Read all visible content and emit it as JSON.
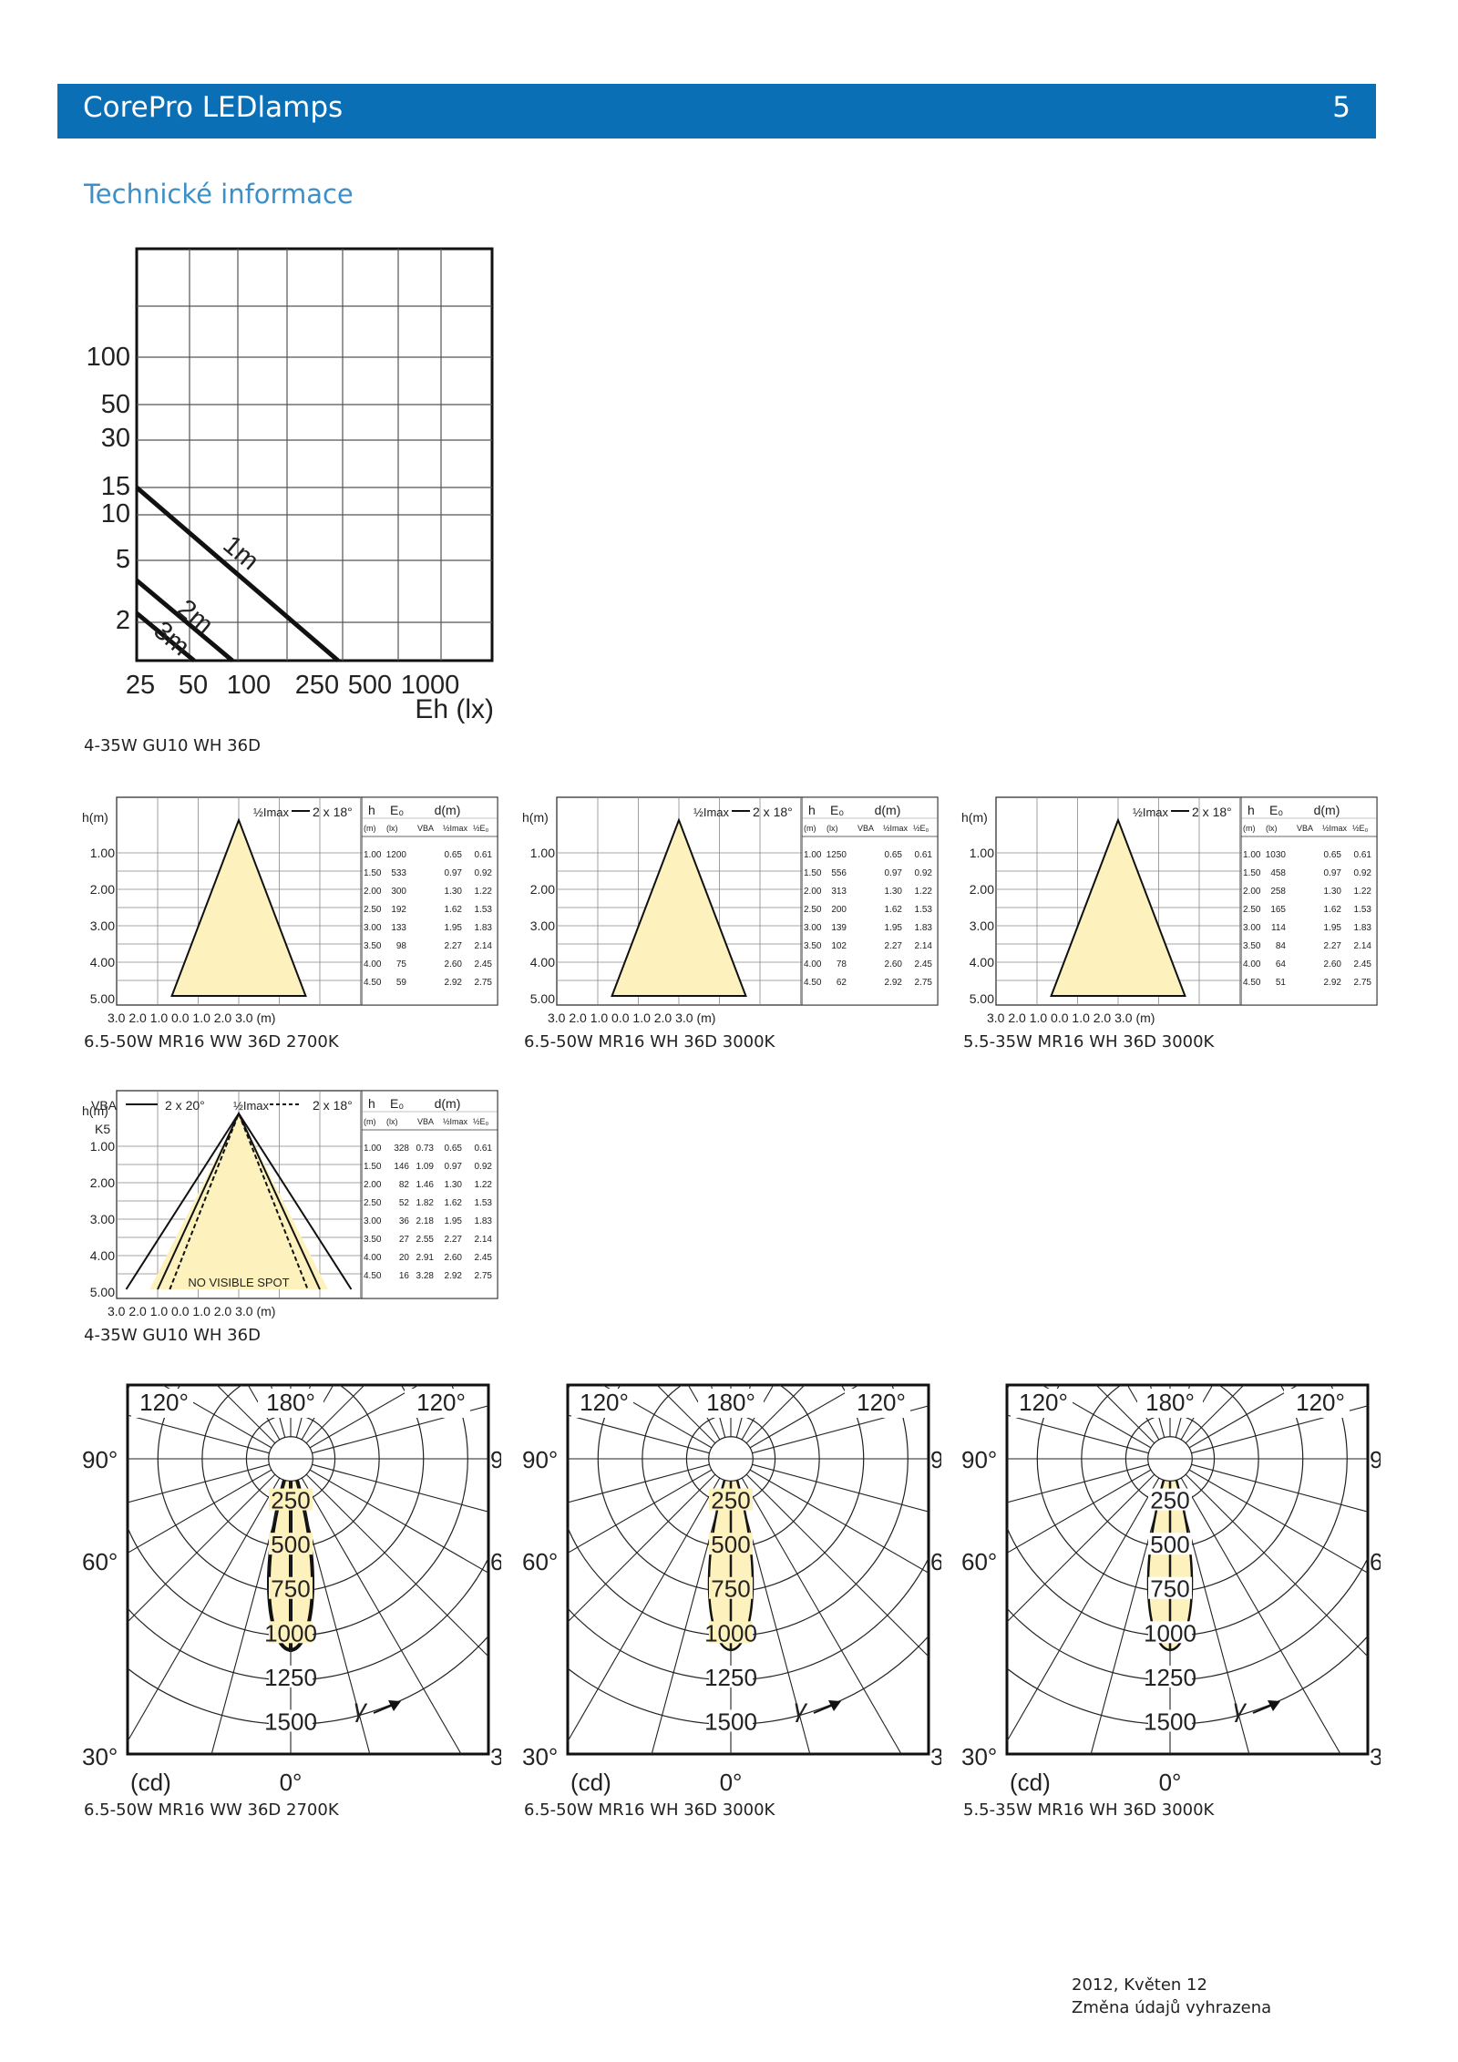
{
  "header": {
    "title": "CorePro LEDlamps",
    "page_number": "5"
  },
  "section_title": "Technické informace",
  "iso_chart": {
    "caption": "4-35W GU10 WH 36D",
    "y_ticks": [
      "100",
      "50",
      "30",
      "15",
      "10",
      "5",
      "2"
    ],
    "x_ticks": [
      "25",
      "50",
      "100",
      "250",
      "500",
      "1000"
    ],
    "x_unit": "Eh (lx)",
    "curves": [
      "1m",
      "2m",
      "3m"
    ]
  },
  "table_headers": {
    "hm": "h(m)",
    "h": "h",
    "e0": "E₀",
    "dm": "d(m)",
    "vba": "VBA",
    "half_imax": "½Imax",
    "half_e": "½E₀",
    "m": "(m)",
    "lx": "(lx)",
    "beam_2x18": "2 x 18°",
    "beam_2x20": "2 x 20°",
    "x_axis": "3.0   2.0   1.0   0.0   1.0   2.0   3.0 (m)"
  },
  "beam_charts": [
    {
      "caption": "6.5-50W MR16 WW 36D 2700K",
      "rows": [
        [
          "1.00",
          "1200",
          "",
          "0.65",
          "0.61"
        ],
        [
          "1.50",
          "533",
          "",
          "0.97",
          "0.92"
        ],
        [
          "2.00",
          "300",
          "",
          "1.30",
          "1.22"
        ],
        [
          "2.50",
          "192",
          "",
          "1.62",
          "1.53"
        ],
        [
          "3.00",
          "133",
          "",
          "1.95",
          "1.83"
        ],
        [
          "3.50",
          "98",
          "",
          "2.27",
          "2.14"
        ],
        [
          "4.00",
          "75",
          "",
          "2.60",
          "2.45"
        ],
        [
          "4.50",
          "59",
          "",
          "2.92",
          "2.75"
        ]
      ]
    },
    {
      "caption": "6.5-50W MR16 WH 36D 3000K",
      "rows": [
        [
          "1.00",
          "1250",
          "",
          "0.65",
          "0.61"
        ],
        [
          "1.50",
          "556",
          "",
          "0.97",
          "0.92"
        ],
        [
          "2.00",
          "313",
          "",
          "1.30",
          "1.22"
        ],
        [
          "2.50",
          "200",
          "",
          "1.62",
          "1.53"
        ],
        [
          "3.00",
          "139",
          "",
          "1.95",
          "1.83"
        ],
        [
          "3.50",
          "102",
          "",
          "2.27",
          "2.14"
        ],
        [
          "4.00",
          "78",
          "",
          "2.60",
          "2.45"
        ],
        [
          "4.50",
          "62",
          "",
          "2.92",
          "2.75"
        ]
      ]
    },
    {
      "caption": "5.5-35W MR16 WH 36D 3000K",
      "rows": [
        [
          "1.00",
          "1030",
          "",
          "0.65",
          "0.61"
        ],
        [
          "1.50",
          "458",
          "",
          "0.97",
          "0.92"
        ],
        [
          "2.00",
          "258",
          "",
          "1.30",
          "1.22"
        ],
        [
          "2.50",
          "165",
          "",
          "1.62",
          "1.53"
        ],
        [
          "3.00",
          "114",
          "",
          "1.95",
          "1.83"
        ],
        [
          "3.50",
          "84",
          "",
          "2.27",
          "2.14"
        ],
        [
          "4.00",
          "64",
          "",
          "2.60",
          "2.45"
        ],
        [
          "4.50",
          "51",
          "",
          "2.92",
          "2.75"
        ]
      ]
    },
    {
      "caption": "4-35W GU10 WH 36D",
      "k5": "K5",
      "no_spot": "NO VISIBLE SPOT",
      "rows": [
        [
          "1.00",
          "328",
          "0.73",
          "0.65",
          "0.61"
        ],
        [
          "1.50",
          "146",
          "1.09",
          "0.97",
          "0.92"
        ],
        [
          "2.00",
          "82",
          "1.46",
          "1.30",
          "1.22"
        ],
        [
          "2.50",
          "52",
          "1.82",
          "1.62",
          "1.53"
        ],
        [
          "3.00",
          "36",
          "2.18",
          "1.95",
          "1.83"
        ],
        [
          "3.50",
          "27",
          "2.55",
          "2.27",
          "2.14"
        ],
        [
          "4.00",
          "20",
          "2.91",
          "2.60",
          "2.45"
        ],
        [
          "4.50",
          "16",
          "3.28",
          "2.92",
          "2.75"
        ]
      ]
    }
  ],
  "polar_charts": [
    {
      "caption": "6.5-50W MR16 WW 36D 2700K"
    },
    {
      "caption": "6.5-50W MR16 WH 36D 3000K"
    },
    {
      "caption": "5.5-35W MR16 WH 36D 3000K"
    }
  ],
  "polar_labels": {
    "angles_top": [
      "120°",
      "180°",
      "120°"
    ],
    "angles_side": [
      "90°",
      "60°",
      "30°"
    ],
    "bottom": "0°",
    "unit": "(cd)",
    "gamma": "γ",
    "rings": [
      "250",
      "500",
      "750",
      "1000",
      "1250",
      "1500"
    ]
  },
  "footer": {
    "line1": "2012, Květen 12",
    "line2": "Změna údajů vyhrazena"
  }
}
